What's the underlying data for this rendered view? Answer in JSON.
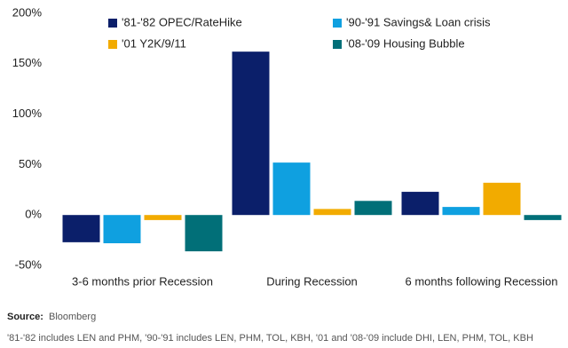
{
  "chart_data": {
    "type": "bar",
    "categories": [
      "3-6 months prior Recession",
      "During Recession",
      "6 months following Recession"
    ],
    "series": [
      {
        "name": "'81-'82 OPEC/RateHike",
        "color": "#0b1f6a",
        "values": [
          -27,
          162,
          23
        ]
      },
      {
        "name": "'90-'91 Savings& Loan crisis",
        "color": "#0fa0e0",
        "values": [
          -28,
          52,
          8
        ]
      },
      {
        "name": "'01 Y2K/9/11",
        "color": "#f2ab00",
        "values": [
          -5,
          6,
          32
        ]
      },
      {
        "name": "'08-'09 Housing Bubble",
        "color": "#016f78",
        "values": [
          -36,
          14,
          -5
        ]
      }
    ],
    "ylim": [
      -50,
      200
    ],
    "yticks": [
      {
        "value": -50,
        "label": "-50%"
      },
      {
        "value": 0,
        "label": "0%"
      },
      {
        "value": 50,
        "label": "50%"
      },
      {
        "value": 100,
        "label": "100%"
      },
      {
        "value": 150,
        "label": "150%"
      },
      {
        "value": 200,
        "label": "200%"
      }
    ],
    "grid": false,
    "source_label": "Source:",
    "source": "Bloomberg",
    "note": "'81-'82 includes LEN and PHM, '90-'91 includes LEN, PHM, TOL, KBH, '01 and '08-'09 include DHI, LEN, PHM, TOL, KBH"
  }
}
